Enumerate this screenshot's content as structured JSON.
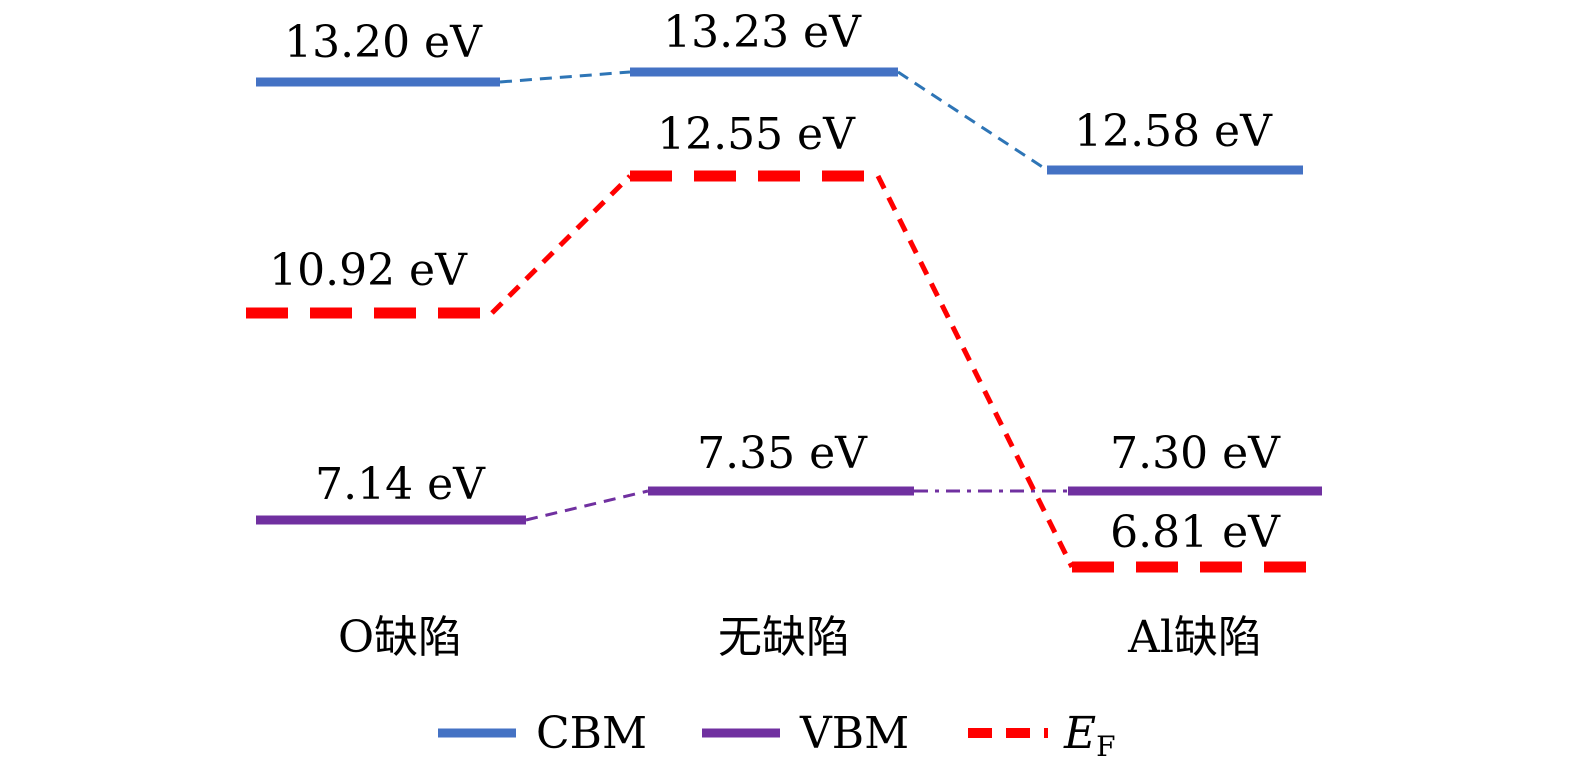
{
  "chart_data": {
    "type": "energy-level-diagram",
    "categories": [
      "O缺陷",
      "无缺陷",
      "Al缺陷"
    ],
    "series": [
      {
        "key": "cbm",
        "name": "CBM",
        "color": "#4472C4",
        "style": "solid",
        "values": [
          13.2,
          13.23,
          12.58
        ],
        "labels": [
          "13.20 eV",
          "13.23 eV",
          "12.58 eV"
        ]
      },
      {
        "key": "ef",
        "name": "E_F",
        "color": "#FF0000",
        "style": "dashed",
        "values": [
          10.92,
          12.55,
          6.81
        ],
        "labels": [
          "10.92 eV",
          "12.55 eV",
          "6.81 eV"
        ]
      },
      {
        "key": "vbm",
        "name": "VBM",
        "color": "#7030A0",
        "style": "solid",
        "values": [
          7.14,
          7.35,
          7.3
        ],
        "labels": [
          "7.14 eV",
          "7.35 eV",
          "7.30 eV"
        ]
      }
    ],
    "legend": {
      "placement": "bottom",
      "items": [
        {
          "key": "cbm",
          "text": "CBM"
        },
        {
          "key": "vbm",
          "text": "VBM"
        },
        {
          "key": "ef",
          "text": "E",
          "sub": "F"
        }
      ]
    }
  }
}
